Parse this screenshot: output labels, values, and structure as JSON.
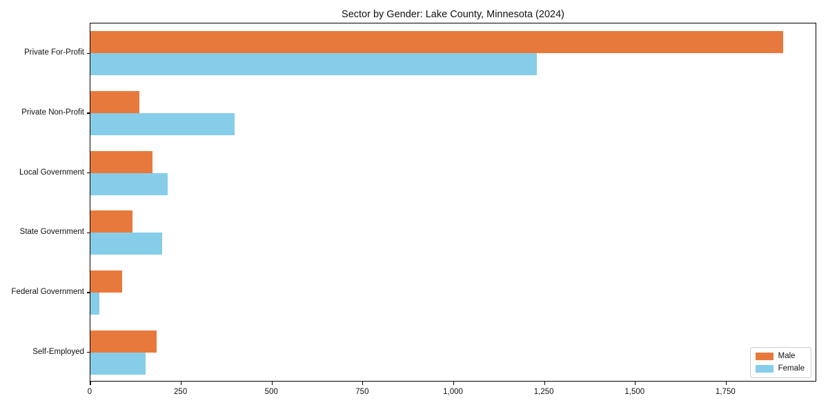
{
  "chart_data": {
    "type": "bar",
    "orientation": "horizontal",
    "title": "Sector by Gender: Lake County, Minnesota (2024)",
    "categories": [
      "Private For-Profit",
      "Private Non-Profit",
      "Local Government",
      "State Government",
      "Federal Government",
      "Self-Employed"
    ],
    "series": [
      {
        "name": "Male",
        "color": "#e8793c",
        "values": [
          1910,
          136,
          172,
          117,
          87,
          182
        ]
      },
      {
        "name": "Female",
        "color": "#85cde9",
        "values": [
          1231,
          398,
          213,
          198,
          24,
          152
        ]
      }
    ],
    "xlim": [
      0,
      2000
    ],
    "xticks": [
      {
        "value": 0,
        "label": "0"
      },
      {
        "value": 250,
        "label": "250"
      },
      {
        "value": 500,
        "label": "500"
      },
      {
        "value": 750,
        "label": "750"
      },
      {
        "value": 1000,
        "label": "1,000"
      },
      {
        "value": 1250,
        "label": "1,250"
      },
      {
        "value": 1500,
        "label": "1,500"
      },
      {
        "value": 1750,
        "label": "1,750"
      }
    ],
    "grid": false,
    "legend_position": "lower right",
    "xlabel": "",
    "ylabel": ""
  },
  "colors": {
    "axis": "#000000",
    "background": "#ffffff",
    "legend_border": "#cccccc"
  }
}
